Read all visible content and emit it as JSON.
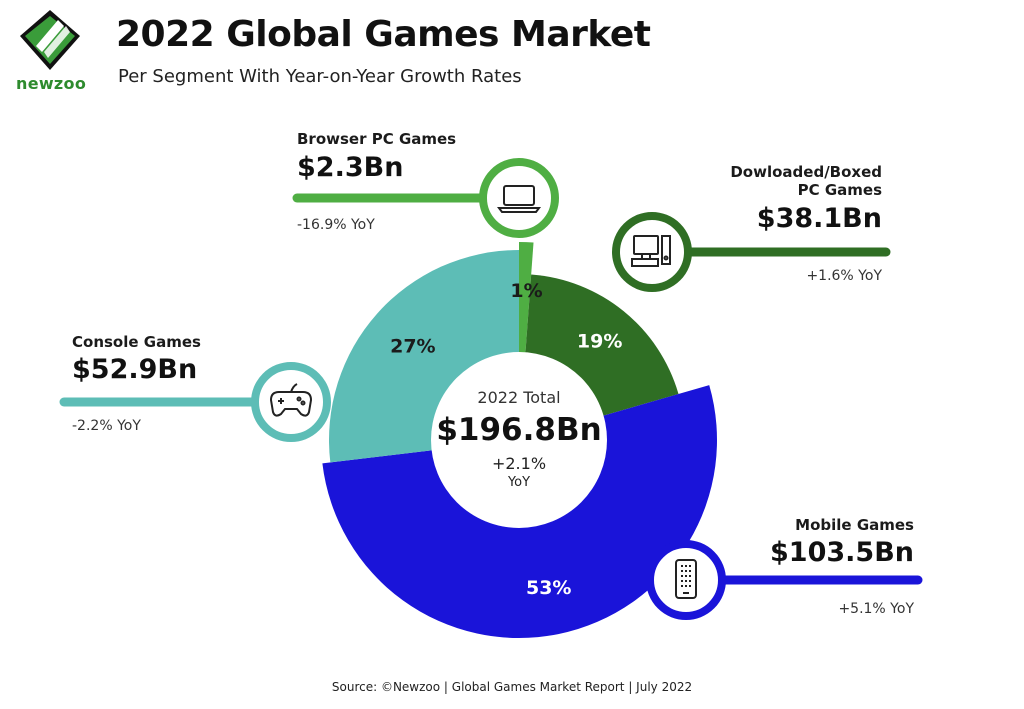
{
  "header": {
    "logo_text": "newzoo",
    "title": "2022 Global Games Market",
    "subtitle": "Per Segment With Year-on-Year Growth Rates"
  },
  "colors": {
    "browser": "#4fae43",
    "pc": "#2f6e24",
    "mobile": "#1a14d9",
    "console": "#5dbdb6"
  },
  "chart_data": {
    "type": "pie",
    "center": {
      "label": "2022 Total",
      "value": "$196.8Bn",
      "growth": "+2.1%",
      "growth_unit": "YoY"
    },
    "slices": [
      {
        "name": "Browser PC Games",
        "value": 2.3,
        "value_label": "$2.3Bn",
        "share": 1,
        "share_label": "1%",
        "yoy": "-16.9% YoY",
        "color": "#4fae43",
        "icon": "laptop-icon"
      },
      {
        "name": "Dowloaded/Boxed PC Games",
        "name_lines": [
          "Dowloaded/Boxed",
          "PC Games"
        ],
        "value": 38.1,
        "value_label": "$38.1Bn",
        "share": 19,
        "share_label": "19%",
        "yoy": "+1.6% YoY",
        "color": "#2f6e24",
        "icon": "desktop-computer-icon"
      },
      {
        "name": "Mobile Games",
        "value": 103.5,
        "value_label": "$103.5Bn",
        "share": 53,
        "share_label": "53%",
        "yoy": "+5.1% YoY",
        "color": "#1a14d9",
        "icon": "smartphone-icon"
      },
      {
        "name": "Console Games",
        "value": 52.9,
        "value_label": "$52.9Bn",
        "share": 27,
        "share_label": "27%",
        "yoy": "-2.2% YoY",
        "color": "#5dbdb6",
        "icon": "gamepad-icon"
      }
    ]
  },
  "footer": {
    "source": "Source: ©Newzoo | Global Games Market Report | July 2022"
  }
}
